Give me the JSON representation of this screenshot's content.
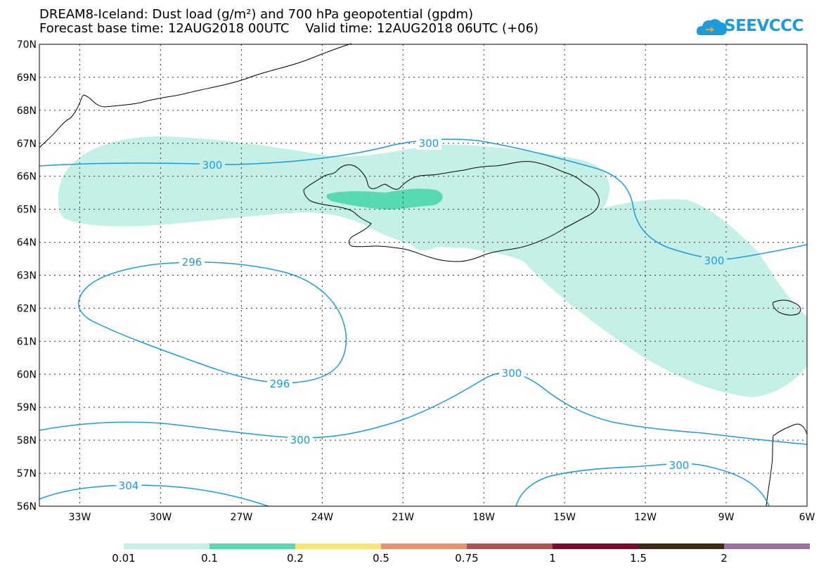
{
  "title": {
    "line1": "DREAM8-Iceland: Dust load (g/m²) and 700 hPa geopotential (gpdm)",
    "line2": "Forecast base time: 12AUG2018 00UTC    Valid time: 12AUG2018 06UTC (+06)"
  },
  "logo": {
    "text": "SEEVCCC",
    "icon": "cloud-icon"
  },
  "map": {
    "lat_labels": [
      "70N",
      "69N",
      "68N",
      "67N",
      "66N",
      "65N",
      "64N",
      "63N",
      "62N",
      "61N",
      "60N",
      "59N",
      "58N",
      "57N",
      "56N"
    ],
    "lon_labels": [
      "33W",
      "30W",
      "27W",
      "24W",
      "21W",
      "18W",
      "15W",
      "12W",
      "9W",
      "6W"
    ],
    "lat_range": [
      56,
      70
    ],
    "lon_range": [
      -34.5,
      -6
    ],
    "grid": true
  },
  "contours": [
    {
      "label": "300"
    },
    {
      "label": "300"
    },
    {
      "label": "300"
    },
    {
      "label": "296"
    },
    {
      "label": "296"
    },
    {
      "label": "300"
    },
    {
      "label": "300"
    },
    {
      "label": "300"
    },
    {
      "label": "304"
    }
  ],
  "legend": {
    "colors": [
      "#c5f0e8",
      "#57d9b2",
      "#f8e870",
      "#e89270",
      "#a9544c",
      "#7d0a2e",
      "#3c2a14",
      "#9b6fa0"
    ],
    "labels": [
      "0.01",
      "0.1",
      "0.2",
      "0.5",
      "0.75",
      "1",
      "1.5",
      "2"
    ]
  },
  "colors": {
    "contour": "#1e9bdb",
    "dust_low": "#c5f0e8",
    "dust_mid": "#57d9b2"
  }
}
